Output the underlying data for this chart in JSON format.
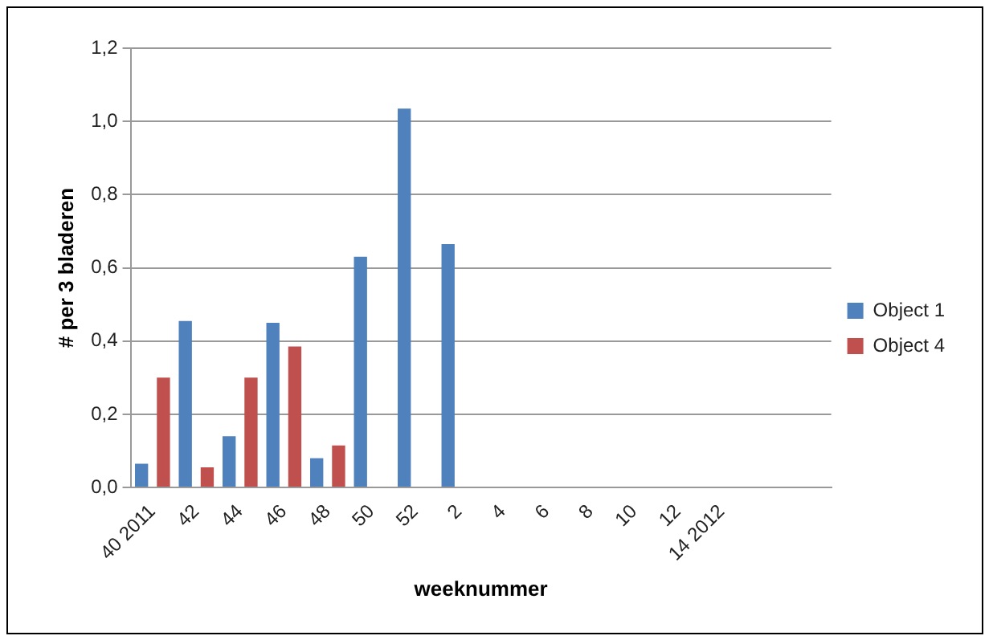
{
  "chart_data": {
    "type": "bar",
    "xlabel": "weeknummer",
    "ylabel": "# per 3 bladeren",
    "categories": [
      "40 2011",
      "42",
      "44",
      "46",
      "48",
      "50",
      "52",
      "2",
      "4",
      "6",
      "8",
      "10",
      "12",
      "14 2012",
      null,
      null
    ],
    "series": [
      {
        "name": "Object 1",
        "color": "#4f81bd",
        "values": [
          0.065,
          0.455,
          0.14,
          0.45,
          0.08,
          0.63,
          1.035,
          0.665,
          null,
          null,
          null,
          null,
          null,
          null,
          null,
          null
        ]
      },
      {
        "name": "Object 4",
        "color": "#c0504d",
        "values": [
          0.3,
          0.055,
          0.3,
          0.385,
          0.115,
          null,
          null,
          null,
          null,
          null,
          null,
          null,
          null,
          null,
          null,
          null
        ]
      }
    ],
    "ylim": [
      0,
      1.2
    ],
    "yticks": [
      {
        "value": 0,
        "label": "0,0"
      },
      {
        "value": 0.2,
        "label": "0,2"
      },
      {
        "value": 0.4,
        "label": "0,4"
      },
      {
        "value": 0.6,
        "label": "0,6"
      },
      {
        "value": 0.8,
        "label": "0,8"
      },
      {
        "value": 1,
        "label": "1,0"
      },
      {
        "value": 1.2,
        "label": "1,2"
      }
    ],
    "grid": "y",
    "legend": "right"
  }
}
